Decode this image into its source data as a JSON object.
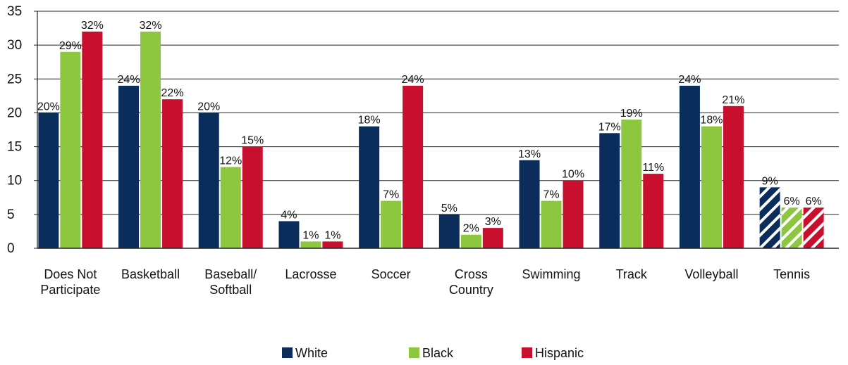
{
  "chart_data": {
    "type": "bar",
    "title": "",
    "xlabel": "",
    "ylabel": "",
    "ylim": [
      0,
      35
    ],
    "yticks": [
      0,
      5,
      10,
      15,
      20,
      25,
      30,
      35
    ],
    "grid": true,
    "legend_position": "bottom",
    "categories": [
      "Does Not Participate",
      "Basketball",
      "Baseball/ Softball",
      "Lacrosse",
      "Soccer",
      "Cross Country",
      "Swimming",
      "Track",
      "Volleyball",
      "Tennis"
    ],
    "category_label_lines": [
      [
        "Does Not",
        "Participate"
      ],
      [
        "Basketball"
      ],
      [
        "Baseball/",
        "Softball"
      ],
      [
        "Lacrosse"
      ],
      [
        "Soccer"
      ],
      [
        "Cross",
        "Country"
      ],
      [
        "Swimming"
      ],
      [
        "Track"
      ],
      [
        "Volleyball"
      ],
      [
        "Tennis"
      ]
    ],
    "hatched_categories": [
      "Tennis"
    ],
    "series": [
      {
        "name": "White",
        "color": "#0b2d5c",
        "values": [
          20,
          24,
          20,
          4,
          18,
          5,
          13,
          17,
          24,
          9
        ]
      },
      {
        "name": "Black",
        "color": "#8dc63f",
        "values": [
          29,
          32,
          12,
          1,
          7,
          2,
          7,
          19,
          18,
          6
        ]
      },
      {
        "name": "Hispanic",
        "color": "#c8102e",
        "values": [
          32,
          22,
          15,
          1,
          24,
          3,
          10,
          11,
          21,
          6
        ]
      }
    ],
    "value_suffix": "%"
  }
}
